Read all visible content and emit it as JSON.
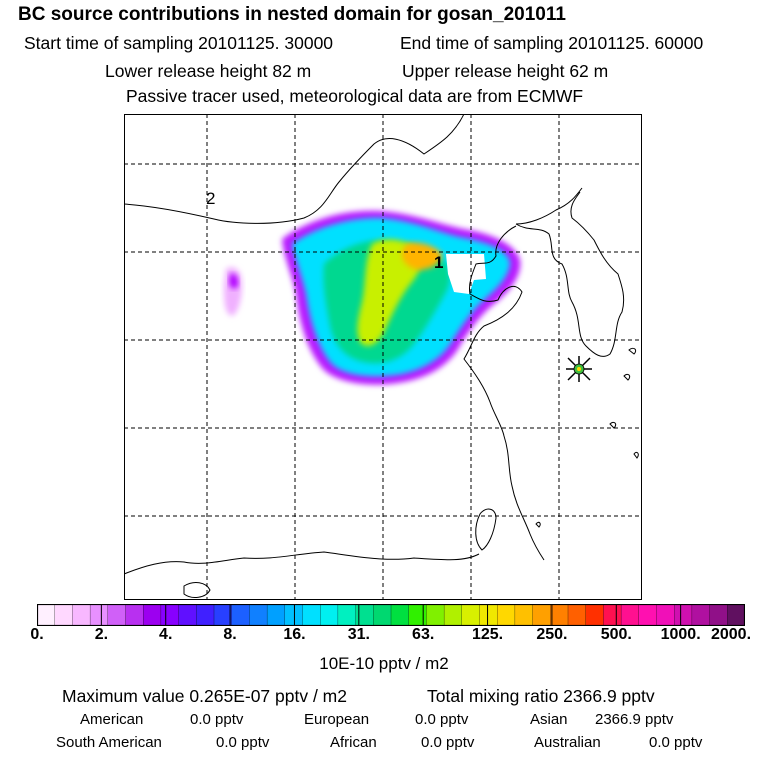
{
  "header": {
    "title": "BC  source contributions in nested domain for gosan_201011",
    "start_time": "Start time of sampling 20101125. 30000",
    "end_time": "End time of sampling 20101125. 60000",
    "lower_release": "Lower release height   82 m",
    "upper_release": "Upper release height   62 m",
    "tracer_note": "Passive tracer used, meteorological data are from ECMWF"
  },
  "map": {
    "labels": [
      "1",
      "2"
    ],
    "receptor_marker": "star-cross",
    "colors": {
      "plume_edge": "#b000ff",
      "plume_outer": "#00e0ff",
      "plume_mid": "#00d890",
      "plume_core": "#c8f000",
      "plume_peak": "#ffb400",
      "coast": "#000000",
      "grid": "#000000"
    }
  },
  "colorbar": {
    "tick_labels": [
      "0.",
      "2.",
      "4.",
      "8.",
      "16.",
      "31.",
      "63.",
      "125.",
      "250.",
      "500.",
      "1000.",
      "2000."
    ],
    "colors": [
      "#fff0ff",
      "#ffd8ff",
      "#f8b8ff",
      "#e890ff",
      "#d060f8",
      "#b830f0",
      "#9c00f0",
      "#8800ff",
      "#6010ff",
      "#4020ff",
      "#2840ff",
      "#1c60ff",
      "#1080ff",
      "#00a0ff",
      "#00c0ff",
      "#00e0ff",
      "#00f0f0",
      "#00f0c0",
      "#00e090",
      "#00d870",
      "#00e040",
      "#30f000",
      "#80f000",
      "#b0f000",
      "#d8f000",
      "#f0e800",
      "#ffd800",
      "#ffc000",
      "#ffa000",
      "#ff8000",
      "#ff6000",
      "#ff3000",
      "#ff1050",
      "#ff1090",
      "#ff10b0",
      "#f010b8",
      "#d010b0",
      "#b010a0",
      "#901088",
      "#601060"
    ],
    "units": "10E-10 pptv / m2"
  },
  "stats": {
    "max_value": "Maximum value  0.265E-07 pptv / m2",
    "total_mixing": "Total mixing ratio     2366.9 pptv",
    "american_label": "American",
    "american_value": "0.0 pptv",
    "european_label": "European",
    "european_value": "0.0 pptv",
    "asian_label": "Asian",
    "asian_value": "2366.9 pptv",
    "south_american_label": "South American",
    "south_american_value": "0.0 pptv",
    "african_label": "African",
    "african_value": "0.0 pptv",
    "australian_label": "Australian",
    "australian_value": "0.0 pptv"
  }
}
